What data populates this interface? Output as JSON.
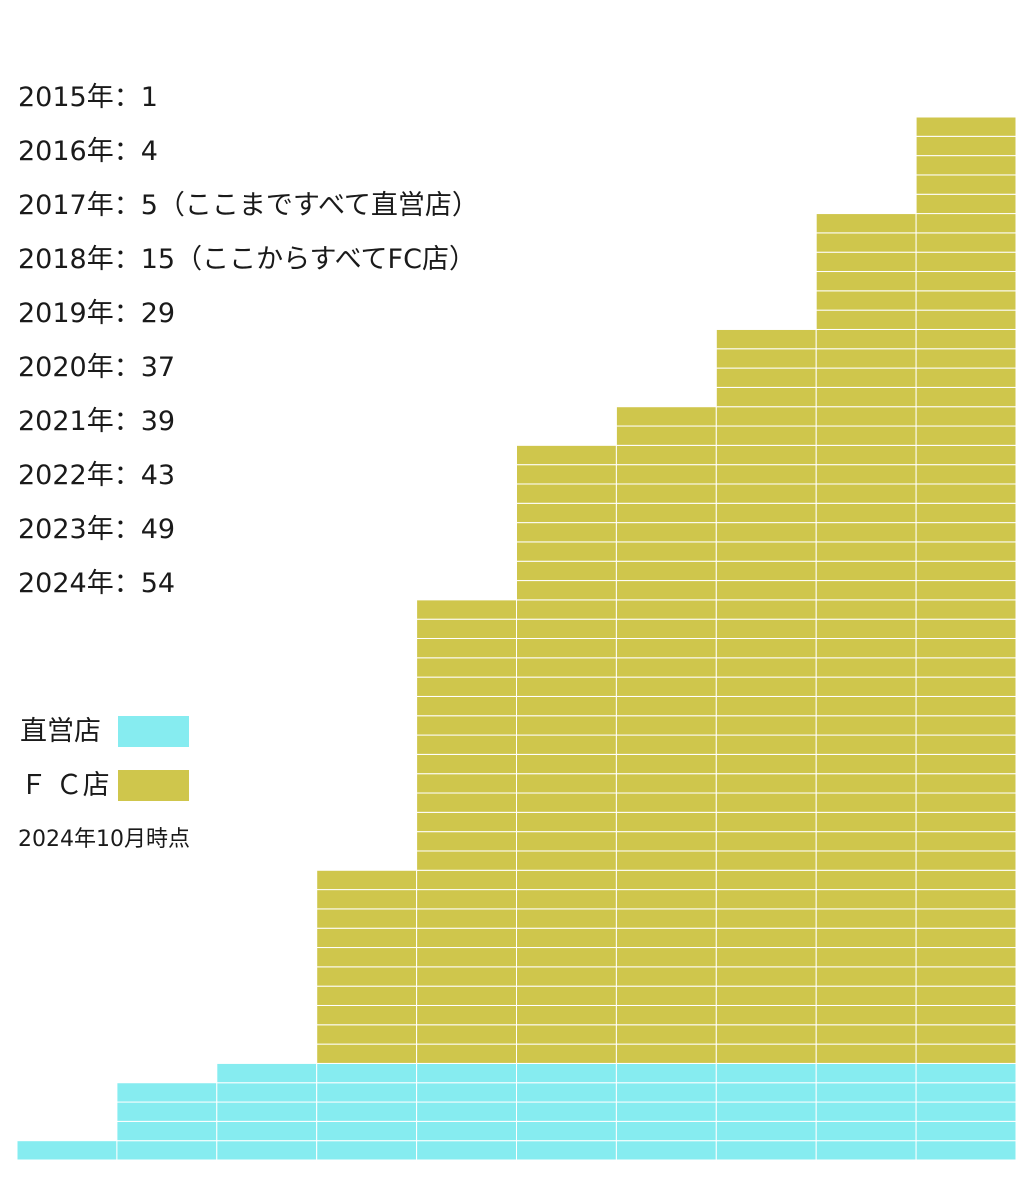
{
  "chart_data": {
    "type": "bar",
    "categories": [
      "2015年",
      "2016年",
      "2017年",
      "2018年",
      "2019年",
      "2020年",
      "2021年",
      "2022年",
      "2023年",
      "2024年"
    ],
    "series": [
      {
        "name": "直営店",
        "values": [
          1,
          4,
          5,
          5,
          5,
          5,
          5,
          5,
          5,
          5
        ],
        "color": "#86ecf0"
      },
      {
        "name": "ＦＣ店",
        "values": [
          0,
          0,
          0,
          10,
          24,
          32,
          34,
          38,
          44,
          49
        ],
        "color": "#cfc64c"
      }
    ],
    "stacked": true,
    "unit_blocks": true,
    "ylim": [
      0,
      54
    ]
  },
  "year_list": [
    {
      "text": "2015年：1"
    },
    {
      "text": "2016年：4"
    },
    {
      "text": "2017年：5（ここまですべて直営店）"
    },
    {
      "text": "2018年：15（ここからすべてFC店）"
    },
    {
      "text": "2019年：29"
    },
    {
      "text": "2020年：37"
    },
    {
      "text": "2021年：39"
    },
    {
      "text": "2022年：43"
    },
    {
      "text": "2023年：49"
    },
    {
      "text": "2024年：54"
    }
  ],
  "legend": [
    {
      "label": "直営店",
      "color": "#86ecf0"
    },
    {
      "label": "Ｆ Ｃ店",
      "color": "#cfc64c"
    }
  ],
  "note": "2024年10月時点"
}
